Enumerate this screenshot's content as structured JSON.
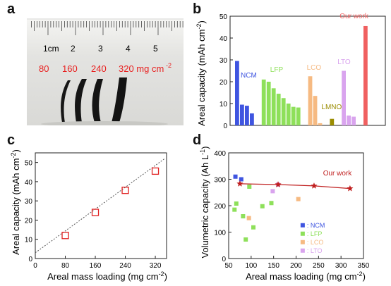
{
  "panels": {
    "a": {
      "label": "a",
      "ruler_ticks": [
        "1cm",
        "2",
        "3",
        "4",
        "5"
      ],
      "loadings": [
        "80",
        "160",
        "240",
        "320 mg cm"
      ],
      "unit_exp": "-2"
    },
    "b": {
      "label": "b"
    },
    "c": {
      "label": "c"
    },
    "d": {
      "label": "d"
    }
  },
  "chart_data": [
    {
      "panel": "b",
      "type": "bar",
      "ylabel": "Areal capacity (mAh cm",
      "ylabel_exp": "-2",
      "ylabel_end": ")",
      "ylim": [
        0,
        50
      ],
      "yticks": [
        0,
        10,
        20,
        30,
        40,
        50
      ],
      "groups": [
        {
          "name": "NCM",
          "color": "#3f55e0",
          "values": [
            29.5,
            9.5,
            9,
            5.5
          ]
        },
        {
          "name": "LFP",
          "color": "#8ee05a",
          "values": [
            21,
            20,
            17,
            14.5,
            12.5,
            10,
            8.5,
            8.2
          ]
        },
        {
          "name": "LCO",
          "color": "#f6ba82",
          "values": [
            22.5,
            13.5,
            1
          ]
        },
        {
          "name": "LMNO",
          "color": "#9a8c00",
          "values": [
            3
          ]
        },
        {
          "name": "LTO",
          "color": "#d9a4ee",
          "values": [
            25,
            4.5,
            4
          ]
        },
        {
          "name": "Our work",
          "color": "#f06060",
          "values": [
            45.5
          ]
        }
      ]
    },
    {
      "panel": "c",
      "type": "scatter",
      "xlabel": "Areal mass loading (mg cm",
      "xlabel_exp": "-2",
      "xlabel_end": ")",
      "ylabel": "Areal capacity (mAh cm",
      "ylabel_exp": "-2",
      "ylabel_end": ")",
      "xlim": [
        0,
        350
      ],
      "ylim": [
        0,
        55
      ],
      "xticks": [
        0,
        80,
        160,
        240,
        320
      ],
      "yticks": [
        0,
        10,
        20,
        30,
        40,
        50
      ],
      "marker_color": "#e02020",
      "points": [
        {
          "x": 80,
          "y": 12
        },
        {
          "x": 160,
          "y": 24
        },
        {
          "x": 240,
          "y": 35.5
        },
        {
          "x": 320,
          "y": 45.5
        }
      ],
      "fit_line": {
        "x": [
          0,
          345
        ],
        "y": [
          3,
          52
        ]
      }
    },
    {
      "panel": "d",
      "type": "scatter",
      "xlabel": "Areal mass loading (mg cm",
      "xlabel_exp": "-2",
      "xlabel_end": ")",
      "ylabel": "Volumetric capacity (Ah L",
      "ylabel_exp": "-1",
      "ylabel_end": ")",
      "xlim": [
        50,
        350
      ],
      "ylim": [
        0,
        400
      ],
      "xticks": [
        50,
        100,
        150,
        200,
        250,
        300,
        350
      ],
      "yticks": [
        0,
        100,
        200,
        300,
        400
      ],
      "legend": [
        {
          "name": ": NCM",
          "color": "#3f55e0"
        },
        {
          "name": ": LFP",
          "color": "#8ee05a"
        },
        {
          "name": ": LCO",
          "color": "#f6ba82"
        },
        {
          "name": ": LTO",
          "color": "#d9a4ee"
        }
      ],
      "series": [
        {
          "name": "NCM",
          "color": "#3f55e0",
          "points": [
            [
              65,
              310
            ],
            [
              78,
              300
            ]
          ]
        },
        {
          "name": "LFP",
          "color": "#8ee05a",
          "points": [
            [
              63,
              185
            ],
            [
              67,
              208
            ],
            [
              82,
              160
            ],
            [
              88,
              72
            ],
            [
              96,
              272
            ],
            [
              105,
              118
            ],
            [
              125,
              198
            ],
            [
              145,
              210
            ]
          ]
        },
        {
          "name": "LCO",
          "color": "#f6ba82",
          "points": [
            [
              95,
              153
            ],
            [
              205,
              225
            ]
          ]
        },
        {
          "name": "LTO",
          "color": "#d9a4ee",
          "points": [
            [
              148,
              255
            ],
            [
              160,
              280
            ]
          ]
        }
      ],
      "our_work": {
        "label": "Our work",
        "color": "#c02020",
        "points": [
          [
            75,
            283
          ],
          [
            160,
            280
          ],
          [
            240,
            275
          ],
          [
            320,
            265
          ]
        ]
      }
    }
  ]
}
